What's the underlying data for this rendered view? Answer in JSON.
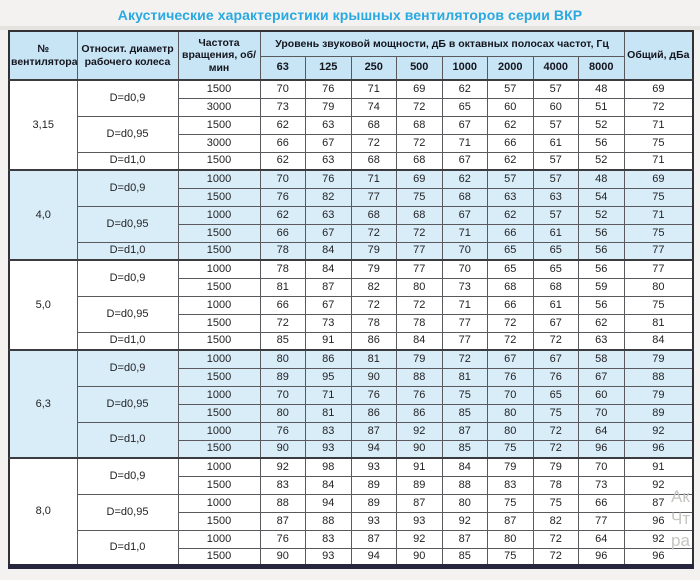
{
  "page": {
    "title": "Акустические характеристики крышных вентиляторов серии ВКР"
  },
  "colors": {
    "title_accent": "#29a9e1",
    "header_bg": "#c7e5f4",
    "band_bg": "#d9edf9",
    "bottom_bar": "#26263e"
  },
  "table": {
    "headers": {
      "fan_no": "№ вентилятора",
      "rel_diameter": "Относит. диаметр рабочего колеса",
      "rpm": "Частота вращения, об/мин",
      "spl_group": "Уровень звуковой мощности, дБ в октавных полосах частот, Гц",
      "frequencies": [
        "63",
        "125",
        "250",
        "500",
        "1000",
        "2000",
        "4000",
        "8000"
      ],
      "total": "Общий, дБа"
    },
    "groups": [
      {
        "fan_no": "3,15",
        "banded": false,
        "subgroups": [
          {
            "diameter": "D=d0,9",
            "rows": [
              {
                "rpm": "1500",
                "levels": [
                  70,
                  76,
                  71,
                  69,
                  62,
                  57,
                  57,
                  48
                ],
                "total": 69
              },
              {
                "rpm": "3000",
                "levels": [
                  73,
                  79,
                  74,
                  72,
                  65,
                  60,
                  60,
                  51
                ],
                "total": 72
              }
            ]
          },
          {
            "diameter": "D=d0,95",
            "rows": [
              {
                "rpm": "1500",
                "levels": [
                  62,
                  63,
                  68,
                  68,
                  67,
                  62,
                  57,
                  52
                ],
                "total": 71
              },
              {
                "rpm": "3000",
                "levels": [
                  66,
                  67,
                  72,
                  72,
                  71,
                  66,
                  61,
                  56
                ],
                "total": 75
              }
            ]
          },
          {
            "diameter": "D=d1,0",
            "rows": [
              {
                "rpm": "1500",
                "levels": [
                  62,
                  63,
                  68,
                  68,
                  67,
                  62,
                  57,
                  52
                ],
                "total": 71
              }
            ]
          }
        ]
      },
      {
        "fan_no": "4,0",
        "banded": true,
        "subgroups": [
          {
            "diameter": "D=d0,9",
            "rows": [
              {
                "rpm": "1000",
                "levels": [
                  70,
                  76,
                  71,
                  69,
                  62,
                  57,
                  57,
                  48
                ],
                "total": 69
              },
              {
                "rpm": "1500",
                "levels": [
                  76,
                  82,
                  77,
                  75,
                  68,
                  63,
                  63,
                  54
                ],
                "total": 75
              }
            ]
          },
          {
            "diameter": "D=d0,95",
            "rows": [
              {
                "rpm": "1000",
                "levels": [
                  62,
                  63,
                  68,
                  68,
                  67,
                  62,
                  57,
                  52
                ],
                "total": 71
              },
              {
                "rpm": "1500",
                "levels": [
                  66,
                  67,
                  72,
                  72,
                  71,
                  66,
                  61,
                  56
                ],
                "total": 75
              }
            ]
          },
          {
            "diameter": "D=d1,0",
            "rows": [
              {
                "rpm": "1500",
                "levels": [
                  78,
                  84,
                  79,
                  77,
                  70,
                  65,
                  65,
                  56
                ],
                "total": 77
              }
            ]
          }
        ]
      },
      {
        "fan_no": "5,0",
        "banded": false,
        "subgroups": [
          {
            "diameter": "D=d0,9",
            "rows": [
              {
                "rpm": "1000",
                "levels": [
                  78,
                  84,
                  79,
                  77,
                  70,
                  65,
                  65,
                  56
                ],
                "total": 77
              },
              {
                "rpm": "1500",
                "levels": [
                  81,
                  87,
                  82,
                  80,
                  73,
                  68,
                  68,
                  59
                ],
                "total": 80
              }
            ]
          },
          {
            "diameter": "D=d0,95",
            "rows": [
              {
                "rpm": "1000",
                "levels": [
                  66,
                  67,
                  72,
                  72,
                  71,
                  66,
                  61,
                  56
                ],
                "total": 75
              },
              {
                "rpm": "1500",
                "levels": [
                  72,
                  73,
                  78,
                  78,
                  77,
                  72,
                  67,
                  62
                ],
                "total": 81
              }
            ]
          },
          {
            "diameter": "D=d1,0",
            "rows": [
              {
                "rpm": "1500",
                "levels": [
                  85,
                  91,
                  86,
                  84,
                  77,
                  72,
                  72,
                  63
                ],
                "total": 84
              }
            ]
          }
        ]
      },
      {
        "fan_no": "6,3",
        "banded": true,
        "subgroups": [
          {
            "diameter": "D=d0,9",
            "rows": [
              {
                "rpm": "1000",
                "levels": [
                  80,
                  86,
                  81,
                  79,
                  72,
                  67,
                  67,
                  58
                ],
                "total": 79
              },
              {
                "rpm": "1500",
                "levels": [
                  89,
                  95,
                  90,
                  88,
                  81,
                  76,
                  76,
                  67
                ],
                "total": 88
              }
            ]
          },
          {
            "diameter": "D=d0,95",
            "rows": [
              {
                "rpm": "1000",
                "levels": [
                  70,
                  71,
                  76,
                  76,
                  75,
                  70,
                  65,
                  60
                ],
                "total": 79
              },
              {
                "rpm": "1500",
                "levels": [
                  80,
                  81,
                  86,
                  86,
                  85,
                  80,
                  75,
                  70
                ],
                "total": 89
              }
            ]
          },
          {
            "diameter": "D=d1,0",
            "rows": [
              {
                "rpm": "1000",
                "levels": [
                  76,
                  83,
                  87,
                  92,
                  87,
                  80,
                  72,
                  64
                ],
                "total": 92
              },
              {
                "rpm": "1500",
                "levels": [
                  90,
                  93,
                  94,
                  90,
                  85,
                  75,
                  72,
                  96
                ],
                "total": 96
              }
            ]
          }
        ]
      },
      {
        "fan_no": "8,0",
        "banded": false,
        "subgroups": [
          {
            "diameter": "D=d0,9",
            "rows": [
              {
                "rpm": "1000",
                "levels": [
                  92,
                  98,
                  93,
                  91,
                  84,
                  79,
                  79,
                  70
                ],
                "total": 91
              },
              {
                "rpm": "1500",
                "levels": [
                  83,
                  84,
                  89,
                  89,
                  88,
                  83,
                  78,
                  73
                ],
                "total": 92
              }
            ]
          },
          {
            "diameter": "D=d0,95",
            "rows": [
              {
                "rpm": "1000",
                "levels": [
                  88,
                  94,
                  89,
                  87,
                  80,
                  75,
                  75,
                  66
                ],
                "total": 87
              },
              {
                "rpm": "1500",
                "levels": [
                  87,
                  88,
                  93,
                  93,
                  92,
                  87,
                  82,
                  77
                ],
                "total": 96
              }
            ]
          },
          {
            "diameter": "D=d1,0",
            "rows": [
              {
                "rpm": "1000",
                "levels": [
                  76,
                  83,
                  87,
                  92,
                  87,
                  80,
                  72,
                  64
                ],
                "total": 92
              },
              {
                "rpm": "1500",
                "levels": [
                  90,
                  93,
                  94,
                  90,
                  85,
                  75,
                  72,
                  96
                ],
                "total": 96
              }
            ]
          }
        ]
      }
    ]
  },
  "watermark": {
    "lines": [
      "Ак",
      "Чт",
      "ра"
    ]
  }
}
